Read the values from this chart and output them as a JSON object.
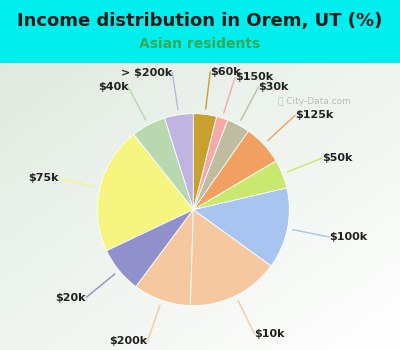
{
  "title": "Income distribution in Orem, UT (%)",
  "subtitle": "Asian residents",
  "title_color": "#1a1a1a",
  "subtitle_color": "#33aa55",
  "background_color": "#00eeee",
  "chart_bg_top_color": "#e0ede0",
  "chart_bg_bot_color": "#cde8e0",
  "watermark": "City-Data.com",
  "labels": [
    "> $200k",
    "$40k",
    "$75k",
    "$20k",
    "$200k",
    "$10k",
    "$100k",
    "$50k",
    "$125k",
    "$30k",
    "$150k",
    "$60k"
  ],
  "values": [
    5,
    6,
    22,
    8,
    10,
    16,
    14,
    5,
    7,
    4,
    2,
    4
  ],
  "colors": [
    "#c0b4e0",
    "#b8d8b0",
    "#f5f580",
    "#9090cc",
    "#f5c8a0",
    "#f5c8a0",
    "#a8c4f0",
    "#c8e870",
    "#f0a060",
    "#c0bca0",
    "#f5aaaa",
    "#c8a030"
  ],
  "start_angle": 90,
  "figsize": [
    4.0,
    3.5
  ],
  "dpi": 100,
  "title_fontsize": 13,
  "subtitle_fontsize": 10,
  "label_fontsize": 8
}
